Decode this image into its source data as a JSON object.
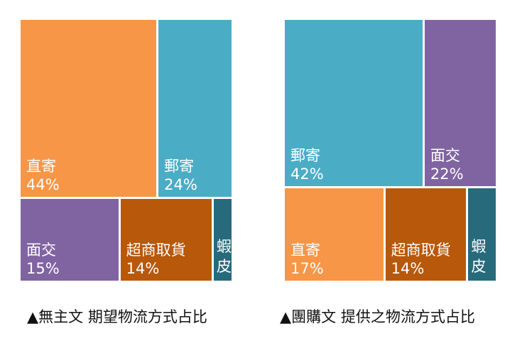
{
  "chart_data": [
    {
      "type": "treemap",
      "caption": "▲無主文  期望物流方式占比",
      "tiles": [
        {
          "label": "直寄",
          "value": 44,
          "pct": "44%",
          "color": "#F79646"
        },
        {
          "label": "郵寄",
          "value": 24,
          "pct": "24%",
          "color": "#4BACC6"
        },
        {
          "label": "面交",
          "value": 15,
          "pct": "15%",
          "color": "#8064A2"
        },
        {
          "label": "超商取貨",
          "value": 14,
          "pct": "14%",
          "color": "#B8580B"
        },
        {
          "label": "蝦皮",
          "value": 3,
          "pct": "",
          "color": "#276A7C"
        }
      ]
    },
    {
      "type": "treemap",
      "caption": "▲團購文  提供之物流方式占比",
      "tiles": [
        {
          "label": "郵寄",
          "value": 42,
          "pct": "42%",
          "color": "#4BACC6"
        },
        {
          "label": "面交",
          "value": 22,
          "pct": "22%",
          "color": "#8064A2"
        },
        {
          "label": "直寄",
          "value": 17,
          "pct": "17%",
          "color": "#F79646"
        },
        {
          "label": "超商取貨",
          "value": 14,
          "pct": "14%",
          "color": "#B8580B"
        },
        {
          "label": "蝦皮",
          "value": 5,
          "pct": "",
          "color": "#276A7C"
        }
      ]
    }
  ]
}
